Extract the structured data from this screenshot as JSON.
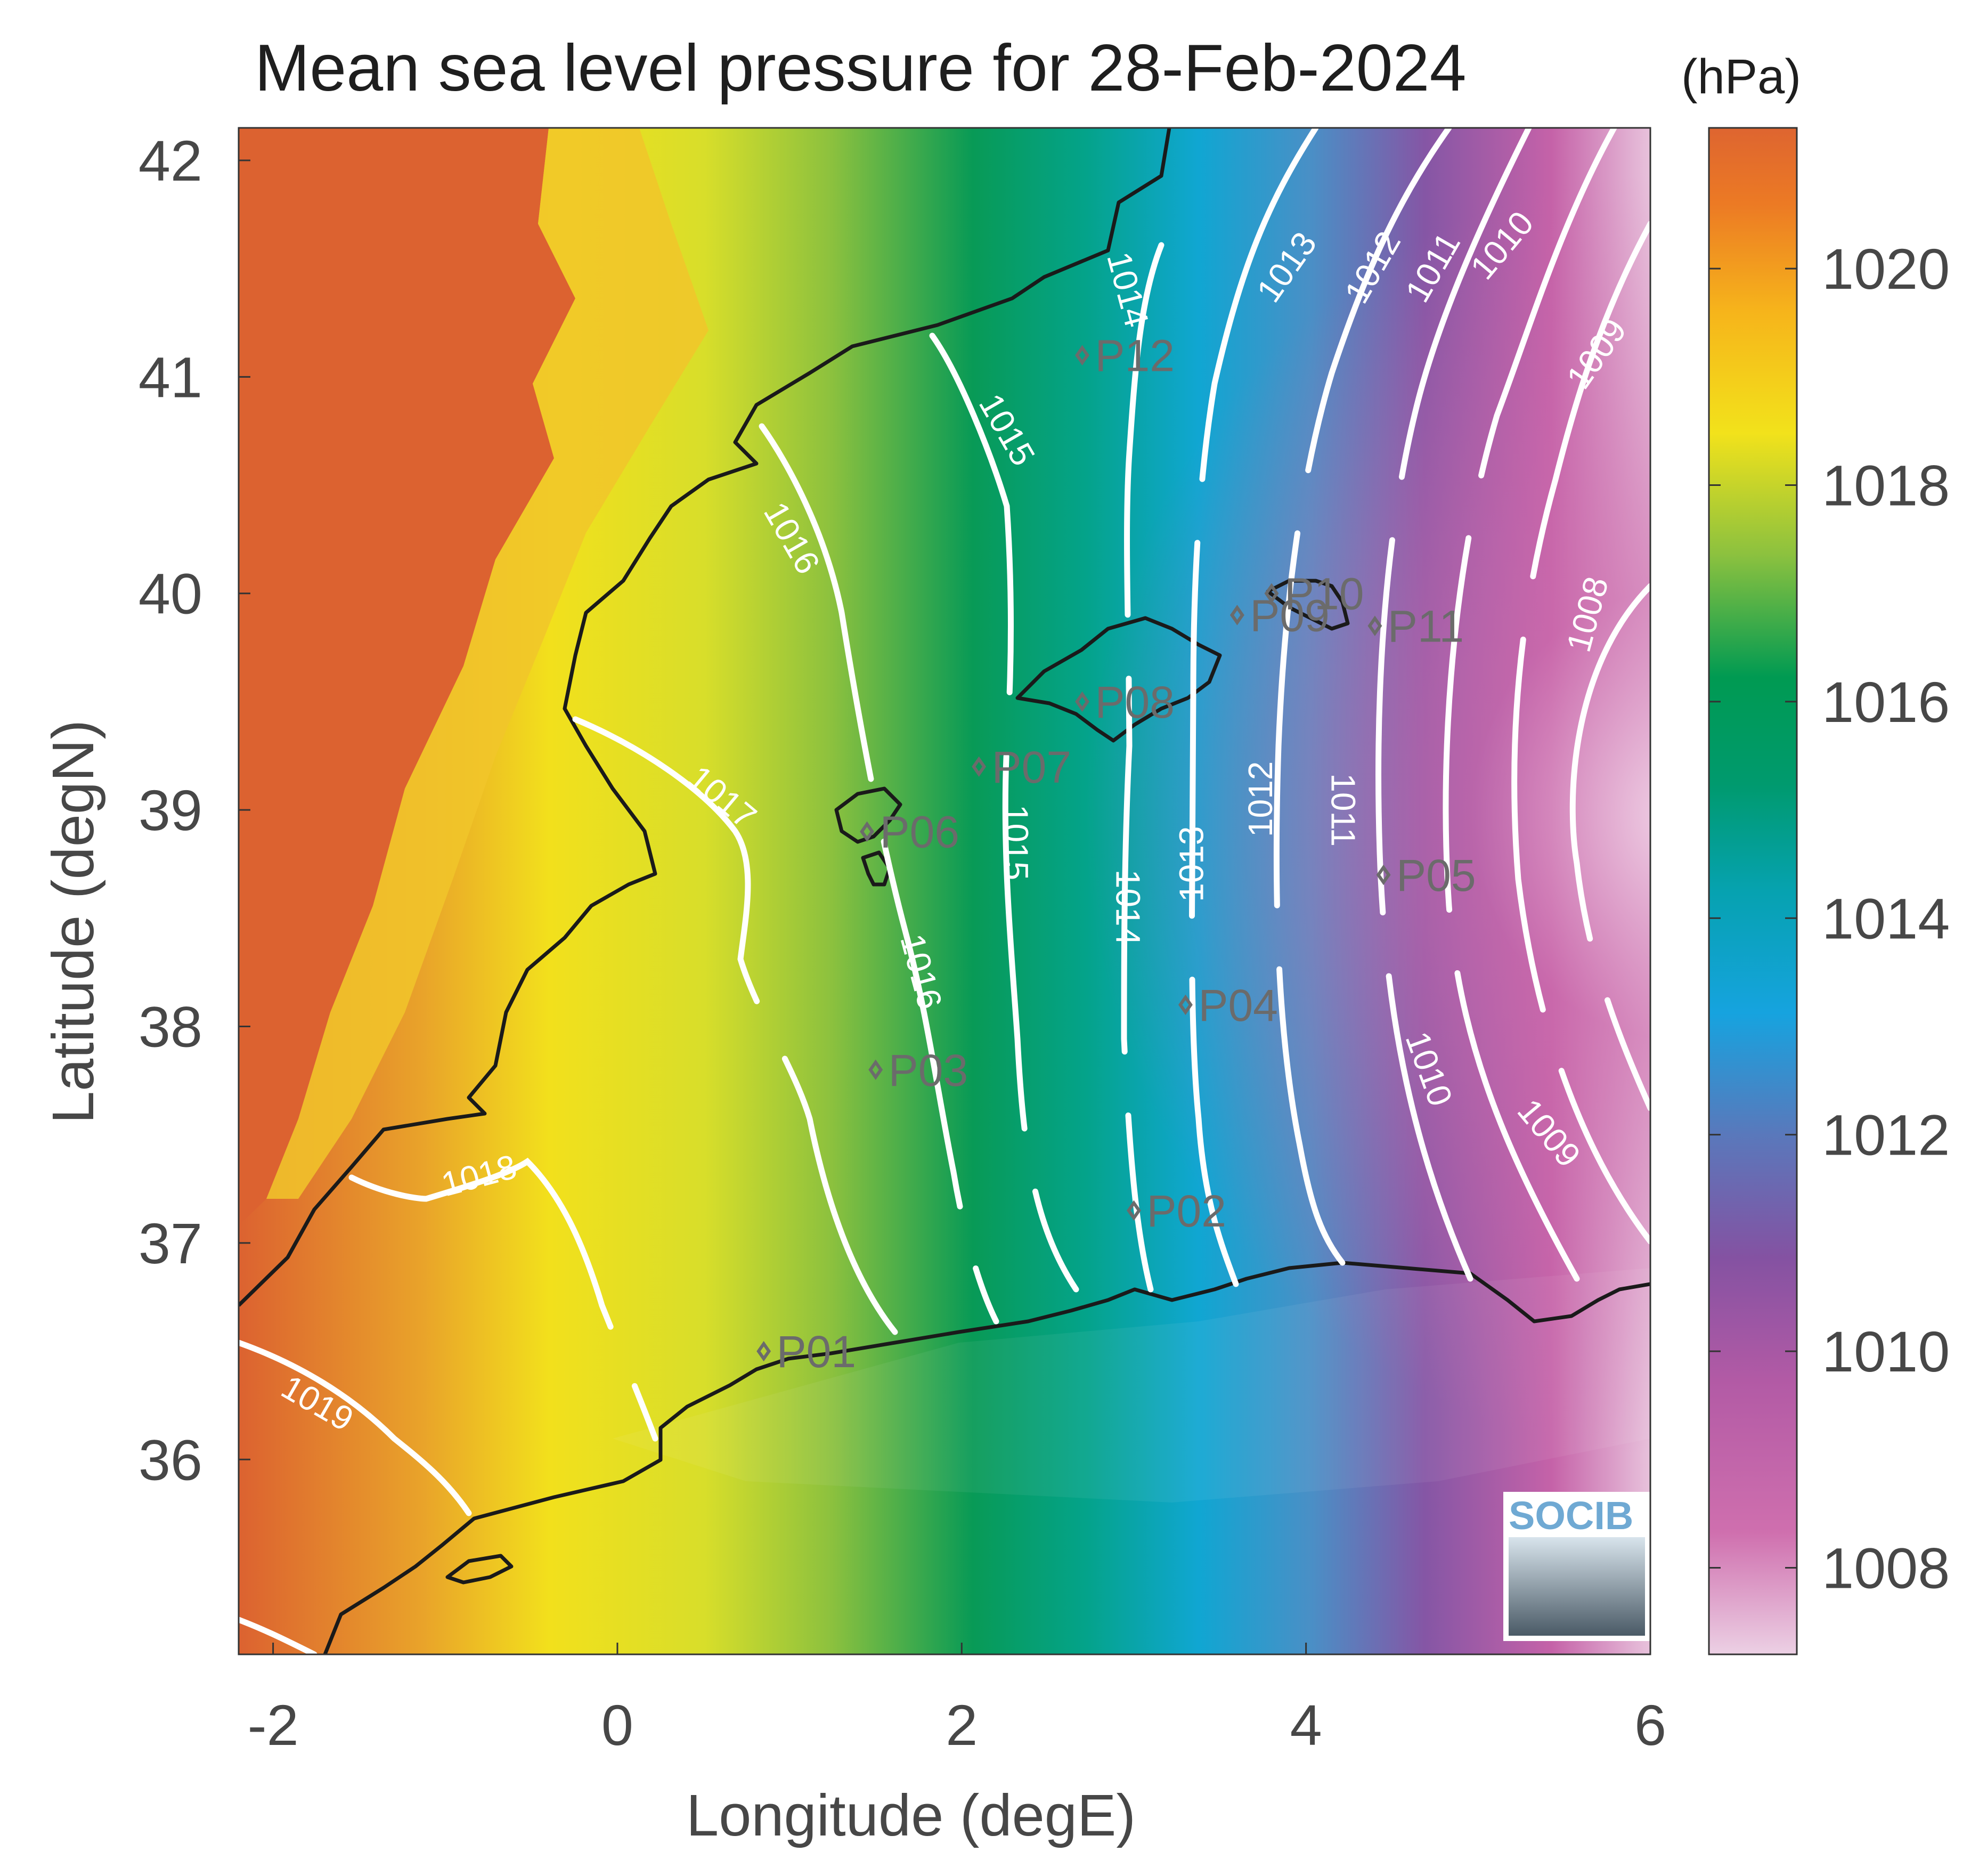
{
  "title": "Mean sea level pressure for 28-Feb-2024",
  "map": {
    "xlabel": "Longitude (degE)",
    "ylabel": "Latitude (degN)",
    "xlim": [
      -2.2,
      6.0
    ],
    "ylim": [
      35.1,
      42.15
    ],
    "xticks": [
      -2,
      0,
      2,
      4,
      6
    ],
    "yticks": [
      36,
      37,
      38,
      39,
      40,
      41,
      42
    ]
  },
  "colorbar": {
    "unit": "(hPa)",
    "min": 1007.2,
    "max": 1021.3,
    "ticks": [
      1008,
      1010,
      1012,
      1014,
      1016,
      1018,
      1020
    ]
  },
  "contours": [
    {
      "label": "1008",
      "lon": 5.65,
      "lat": 39.9,
      "rot": -75
    },
    {
      "label": "1009",
      "lon": 5.7,
      "lat": 41.1,
      "rot": -55
    },
    {
      "label": "1009",
      "lon": 5.4,
      "lat": 37.5,
      "rot": 50
    },
    {
      "label": "1010",
      "lon": 5.15,
      "lat": 41.6,
      "rot": -50
    },
    {
      "label": "1010",
      "lon": 4.7,
      "lat": 37.8,
      "rot": 70
    },
    {
      "label": "1011",
      "lon": 4.75,
      "lat": 41.5,
      "rot": -60
    },
    {
      "label": "1011",
      "lon": 4.2,
      "lat": 39.0,
      "rot": 90
    },
    {
      "label": "1012",
      "lon": 4.4,
      "lat": 41.5,
      "rot": -60
    },
    {
      "label": "1012",
      "lon": 3.75,
      "lat": 39.05,
      "rot": -90
    },
    {
      "label": "1013",
      "lon": 3.9,
      "lat": 41.5,
      "rot": -55
    },
    {
      "label": "1013",
      "lon": 3.35,
      "lat": 38.75,
      "rot": -90
    },
    {
      "label": "1014",
      "lon": 2.95,
      "lat": 41.4,
      "rot": 75
    },
    {
      "label": "1014",
      "lon": 2.95,
      "lat": 38.55,
      "rot": 90
    },
    {
      "label": "1015",
      "lon": 2.25,
      "lat": 40.75,
      "rot": 60
    },
    {
      "label": "1015",
      "lon": 2.3,
      "lat": 38.85,
      "rot": 90
    },
    {
      "label": "1016",
      "lon": 1.0,
      "lat": 40.25,
      "rot": 60
    },
    {
      "label": "1016",
      "lon": 1.75,
      "lat": 38.25,
      "rot": 75
    },
    {
      "label": "1017",
      "lon": 0.6,
      "lat": 39.05,
      "rot": 40
    },
    {
      "label": "1018",
      "lon": -0.8,
      "lat": 37.3,
      "rot": -15
    },
    {
      "label": "1019",
      "lon": -1.75,
      "lat": 36.25,
      "rot": 30
    }
  ],
  "stations": [
    {
      "name": "P01",
      "lon": 0.85,
      "lat": 36.5
    },
    {
      "name": "P02",
      "lon": 3.0,
      "lat": 37.15
    },
    {
      "name": "P03",
      "lon": 1.5,
      "lat": 37.8
    },
    {
      "name": "P04",
      "lon": 3.3,
      "lat": 38.1
    },
    {
      "name": "P05",
      "lon": 4.45,
      "lat": 38.7
    },
    {
      "name": "P06",
      "lon": 1.45,
      "lat": 38.9
    },
    {
      "name": "P07",
      "lon": 2.1,
      "lat": 39.2
    },
    {
      "name": "P08",
      "lon": 2.7,
      "lat": 39.5
    },
    {
      "name": "P09",
      "lon": 3.6,
      "lat": 39.9
    },
    {
      "name": "P10",
      "lon": 3.8,
      "lat": 40.0
    },
    {
      "name": "P11",
      "lon": 4.4,
      "lat": 39.85
    },
    {
      "name": "P12",
      "lon": 2.7,
      "lat": 41.1
    }
  ],
  "logo": {
    "text": "SOCIB"
  },
  "colors": {
    "coast": "#1a1a1a",
    "contour": "#ffffff",
    "station": "#6b6b6b",
    "scale": [
      "#e6c4dd",
      "#c964a5",
      "#8a58a3",
      "#1aa3e0",
      "#00a2a0",
      "#009954",
      "#8ec13e",
      "#f2e31a",
      "#f4a51c",
      "#e2642c"
    ]
  }
}
